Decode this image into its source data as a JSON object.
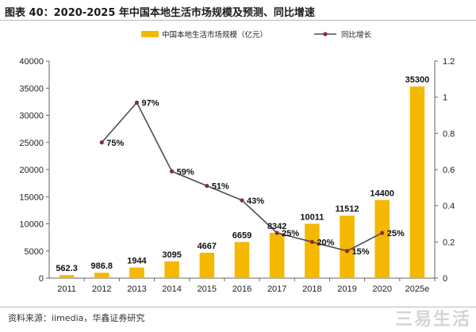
{
  "header": {
    "title": "图表 40：2020-2025 年中国本地生活市场规模及预测、同比增速"
  },
  "footer": {
    "source": "资料来源：iimedia，华鑫证券研究"
  },
  "watermark": {
    "text": "三易生活"
  },
  "colors": {
    "bar": "#F5B800",
    "line": "#4A4A5C",
    "marker": "#8B2B3A",
    "axis": "#666666"
  },
  "chart_data": {
    "type": "bar",
    "categories": [
      "2011",
      "2012",
      "2013",
      "2014",
      "2015",
      "2016",
      "2017",
      "2018",
      "2019",
      "2020",
      "2025e"
    ],
    "series": [
      {
        "name": "中国本地生活市场规模（亿元）",
        "type": "bar",
        "axis": "left",
        "values": [
          562.3,
          986.8,
          1944,
          3095,
          4667,
          6659,
          8342,
          10011,
          11512,
          14400,
          35300
        ],
        "labels": [
          "562.3",
          "986.8",
          "1944",
          "3095",
          "4667",
          "6659",
          "8342",
          "10011",
          "11512",
          "14400",
          "35300"
        ]
      },
      {
        "name": "同比增长",
        "type": "line",
        "axis": "right",
        "values": [
          null,
          0.75,
          0.97,
          0.59,
          0.51,
          0.43,
          0.25,
          0.2,
          0.15,
          0.25,
          null
        ],
        "labels": [
          null,
          "75%",
          "97%",
          "59%",
          "51%",
          "43%",
          "25%",
          "20%",
          "15%",
          "25%",
          null
        ]
      }
    ],
    "ylim": [
      0,
      40000
    ],
    "y_ticks": [
      "0",
      "5000",
      "10000",
      "15000",
      "20000",
      "25000",
      "30000",
      "35000",
      "40000"
    ],
    "y2lim": [
      0,
      1.2
    ],
    "y2_ticks": [
      "0",
      "0.2",
      "0.4",
      "0.6",
      "0.8",
      "1",
      "1.2"
    ],
    "legend_position": "top-center",
    "grid": false
  }
}
